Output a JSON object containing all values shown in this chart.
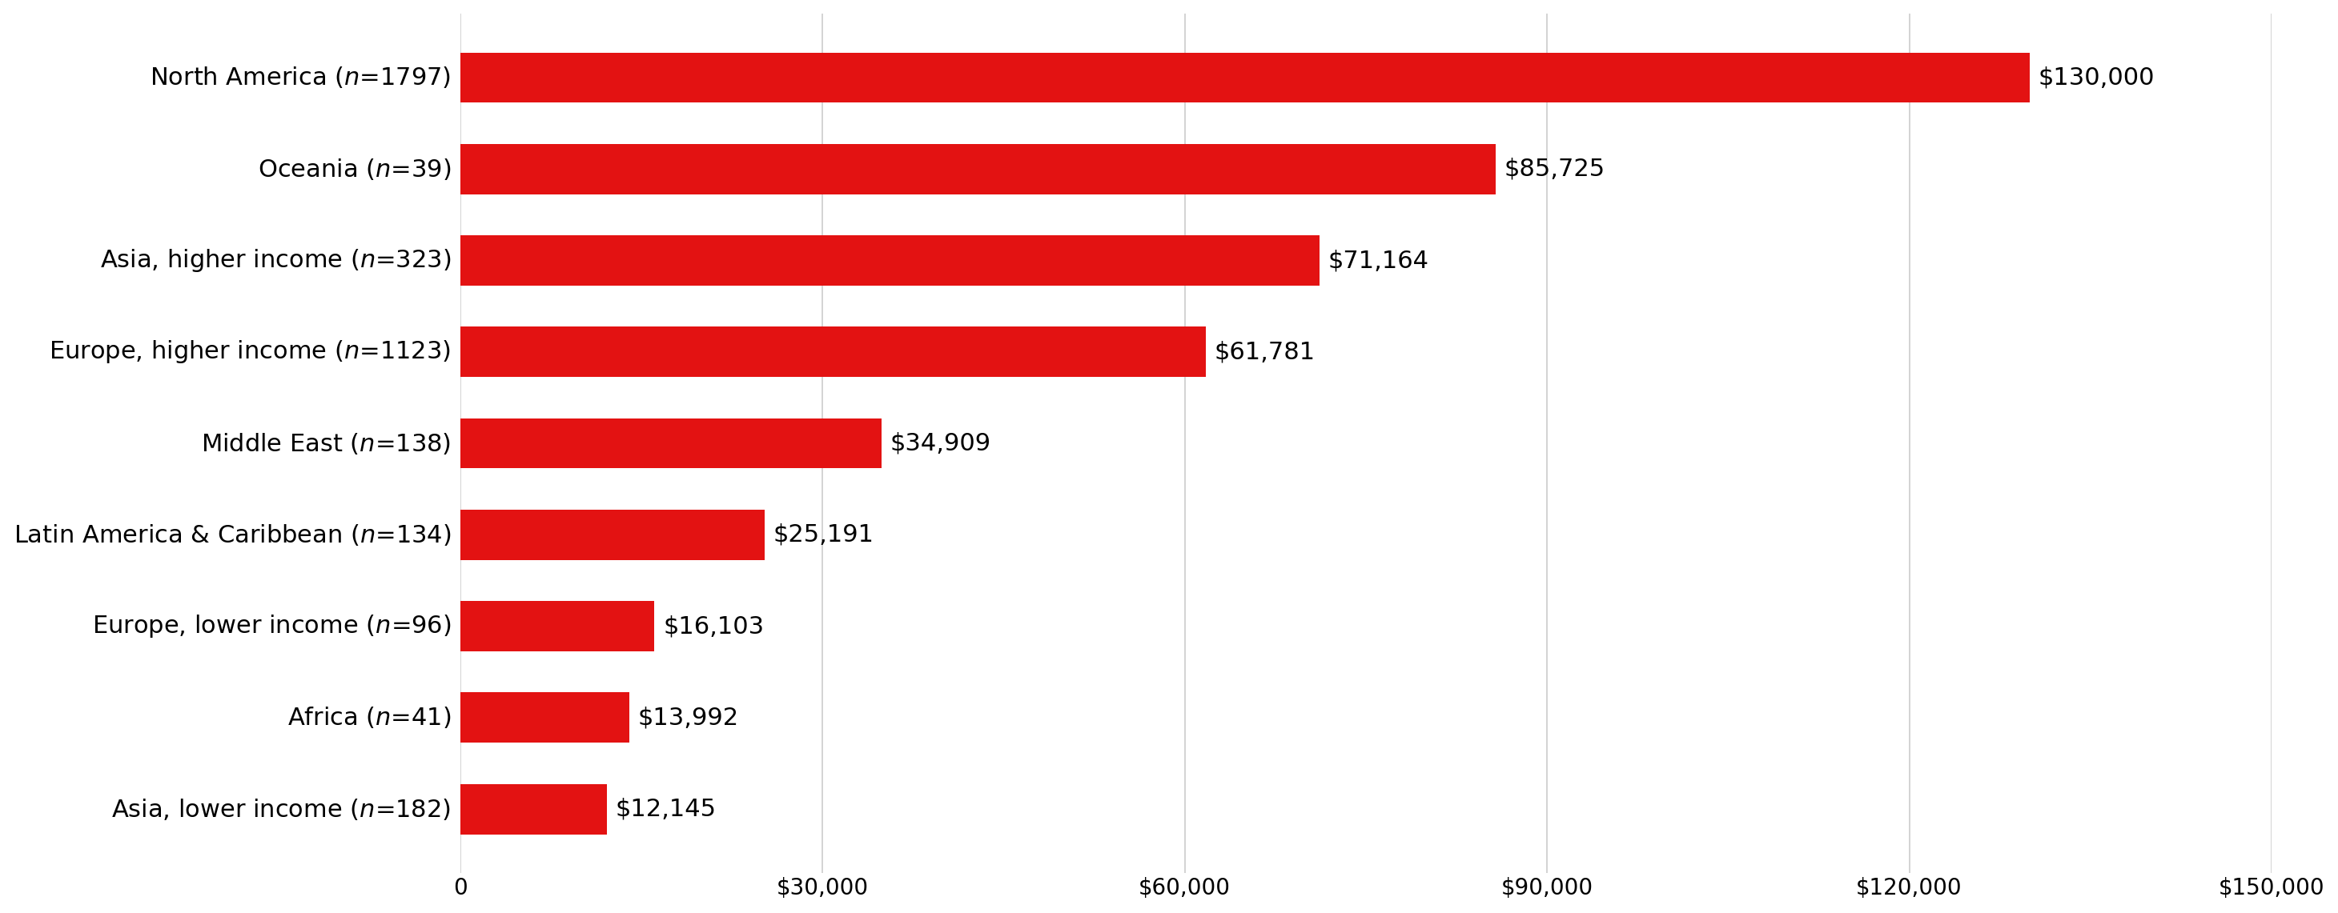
{
  "categories_display": [
    "Asia, lower income ($\\itn$=182)",
    "Africa ($\\itн$=41)",
    "Europe, lower income ($\\itn$=96)",
    "Latin America & Caribbean ($\\itn$=134)",
    "Middle East ($\\itn$=138)",
    "Europe, higher income ($\\itn$=1123)",
    "Asia, higher income ($\\itn$=323)",
    "Oceania ($\\itn$=39)",
    "North America ($\\itn$=1797)"
  ],
  "categories_plain": [
    "Asia, lower income (n=182)",
    "Africa (n=41)",
    "Europe, lower income (n=96)",
    "Latin America & Caribbean (n=134)",
    "Middle East (n=138)",
    "Europe, higher income (n=1123)",
    "Asia, higher income (n=323)",
    "Oceania (n=39)",
    "North America (n=1797)"
  ],
  "values": [
    12145,
    13992,
    16103,
    25191,
    34909,
    61781,
    71164,
    85725,
    130000
  ],
  "bar_color": "#E31212",
  "value_labels": [
    "$12,145",
    "$13,992",
    "$16,103",
    "$25,191",
    "$34,909",
    "$61,781",
    "$71,164",
    "$85,725",
    "$130,000"
  ],
  "xlim": [
    0,
    150000
  ],
  "xticks": [
    0,
    30000,
    60000,
    90000,
    120000,
    150000
  ],
  "xtick_labels": [
    "0",
    "$30,000",
    "$60,000",
    "$90,000",
    "$120,000",
    "$150,000"
  ],
  "background_color": "#ffffff",
  "grid_color": "#cccccc",
  "bar_height": 0.55,
  "label_fontsize": 22,
  "tick_fontsize": 20,
  "value_label_fontsize": 22,
  "label_parts": [
    [
      "Asia, lower income (",
      "n",
      "=182)"
    ],
    [
      "Africa (",
      "n",
      "=41)"
    ],
    [
      "Europe, lower income (",
      "n",
      "=96)"
    ],
    [
      "Latin America & Caribbean (",
      "n",
      "=134)"
    ],
    [
      "Middle East (",
      "n",
      "=138)"
    ],
    [
      "Europe, higher income (",
      "n",
      "=1123)"
    ],
    [
      "Asia, higher income (",
      "n",
      "=323)"
    ],
    [
      "Oceania (",
      "n",
      "=39)"
    ],
    [
      "North America (",
      "n",
      "=1797)"
    ]
  ]
}
